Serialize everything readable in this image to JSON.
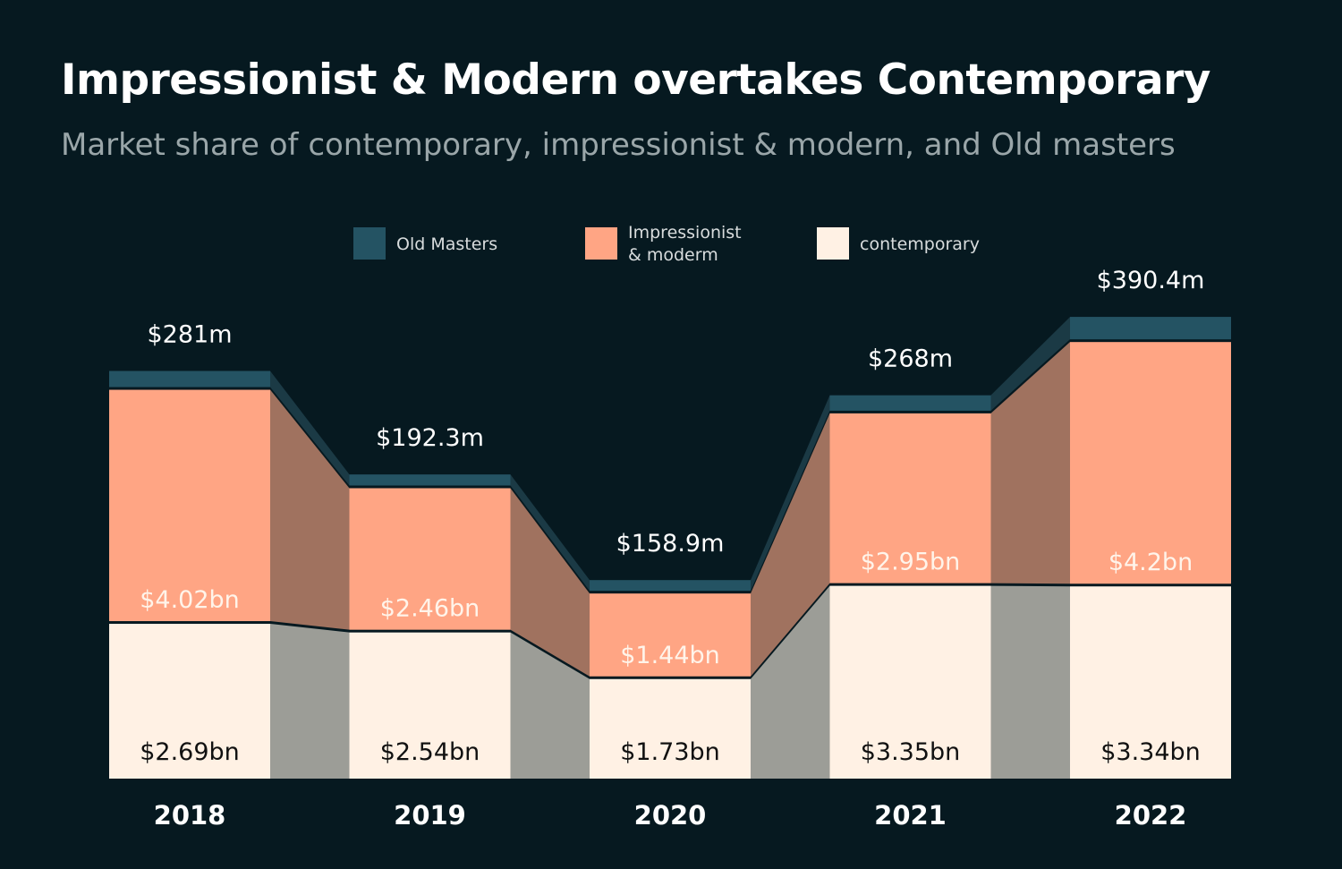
{
  "title": "Impressionist & Modern overtakes Contemporary",
  "subtitle": "Market share of contemporary, impressionist & modern, and Old masters",
  "colors": {
    "background": "#061920",
    "old_masters": "#245363",
    "impressionist": "#ffa584",
    "contemporary": "#fff1e4",
    "band_impressionist": "#a0725f",
    "band_contemporary": "#9c9d97",
    "band_old_masters": "#1b3a45"
  },
  "legend": [
    {
      "key": "old_masters",
      "line1": "Old Masters",
      "line2": ""
    },
    {
      "key": "impressionist",
      "line1": "Impressionist",
      "line2": "& moderm"
    },
    {
      "key": "contemporary",
      "line1": "contemporary",
      "line2": ""
    }
  ],
  "chart_data": {
    "type": "bar",
    "stacked": true,
    "categories": [
      "2018",
      "2019",
      "2020",
      "2021",
      "2022"
    ],
    "series": [
      {
        "key": "contemporary",
        "name": "contemporary",
        "values": [
          2.69,
          2.54,
          1.73,
          3.35,
          3.34
        ],
        "labels": [
          "$2.69bn",
          "$2.54bn",
          "$1.73bn",
          "$3.35bn",
          "$3.34bn"
        ]
      },
      {
        "key": "impressionist",
        "name": "Impressionist & moderm",
        "values": [
          4.02,
          2.46,
          1.44,
          2.95,
          4.2
        ],
        "labels": [
          "$4.02bn",
          "$2.46bn",
          "$1.44bn",
          "$2.95bn",
          "$4.2bn"
        ]
      },
      {
        "key": "old_masters",
        "name": "Old Masters",
        "values": [
          0.281,
          0.1923,
          0.1589,
          0.268,
          0.3904
        ],
        "labels": [
          "$281m",
          "$192.3m",
          "$158.9m",
          "$268m",
          "$390.4m"
        ]
      }
    ],
    "unit": "USD billions",
    "legend_position": "top-center",
    "grid": false
  }
}
